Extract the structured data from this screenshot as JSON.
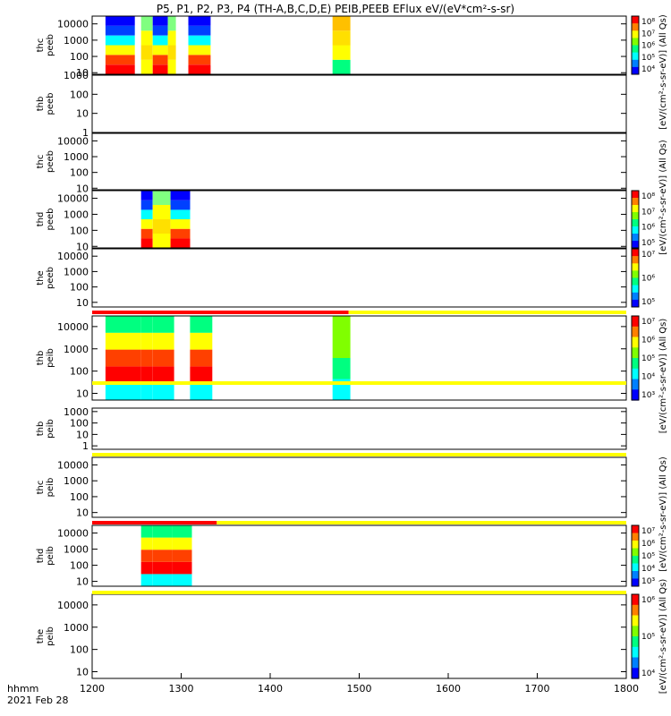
{
  "title": "P5, P1, P2, P3, P4 (TH-A,B,C,D,E) PEIB,PEEB EFlux eV/(eV*cm²-s-sr)",
  "footer": {
    "time_label": "hhmm",
    "date_label": "2021 Feb 28"
  },
  "colorbar_unit_labels": [
    "[eV/(cm²-s-sr-eV)] (All Qs)",
    "[eV/(cm²-s-sr-eV)] (All Qs)",
    "[eV/(cm²-s-sr-eV)] (All Qs)",
    "[eV/(cm²-s-sr-eV)] (All Qs)",
    "[eV/(cm²-s-sr-eV)] (All Qs)"
  ],
  "chart_data": {
    "type": "heatmap",
    "x_axis": {
      "range": [
        1200,
        1800
      ],
      "ticks": [
        "1200",
        "1300",
        "1400",
        "1500",
        "1600",
        "1700",
        "1800"
      ],
      "label": "hhmm"
    },
    "panels": [
      {
        "probe": "thc",
        "product": "peeb",
        "label": [
          "thc",
          "peeb"
        ],
        "ylog": true,
        "yrange": [
          8,
          30000
        ],
        "yticks": [
          "10",
          "100",
          "1000",
          "10000"
        ],
        "colorbar": "10⁴–10⁸",
        "cbar_ticks": [
          "10⁴",
          "10⁵",
          "10⁶",
          "10⁷",
          "10⁸"
        ],
        "data_intervals": [
          [
            1215,
            1248
          ],
          [
            1255,
            1268
          ],
          [
            1268,
            1285
          ],
          [
            1285,
            1294
          ],
          [
            1308,
            1333
          ],
          [
            1470,
            1490
          ]
        ]
      },
      {
        "probe": "thb",
        "product": "peeb",
        "label": [
          "thb",
          "peeb"
        ],
        "ylog": true,
        "yrange": [
          1,
          1000
        ],
        "yticks": [
          "1",
          "10",
          "100",
          "1000"
        ],
        "data_intervals": []
      },
      {
        "probe": "thc",
        "product": "peeb",
        "label": [
          "thc",
          "peeb"
        ],
        "ylog": true,
        "yrange": [
          8,
          30000
        ],
        "yticks": [
          "10",
          "100",
          "1000",
          "10000"
        ],
        "data_intervals": []
      },
      {
        "probe": "thd",
        "product": "peeb",
        "label": [
          "thd",
          "peeb"
        ],
        "ylog": true,
        "yrange": [
          8,
          30000
        ],
        "yticks": [
          "10",
          "100",
          "1000",
          "10000"
        ],
        "cbar_ticks": [
          "10⁵",
          "10⁶",
          "10⁷",
          "10⁸"
        ],
        "data_intervals": [
          [
            1255,
            1268
          ],
          [
            1268,
            1288
          ],
          [
            1288,
            1310
          ]
        ]
      },
      {
        "probe": "the",
        "product": "peeb",
        "label": [
          "the",
          "peeb"
        ],
        "ylog": true,
        "yrange": [
          5,
          30000
        ],
        "yticks": [
          "10",
          "100",
          "1000",
          "10000"
        ],
        "cbar_ticks": [
          "10⁵",
          "10⁶",
          "10⁷"
        ],
        "data_intervals": []
      },
      {
        "probe": "thb",
        "product": "peib",
        "label": [
          "thb",
          "peib"
        ],
        "ylog": true,
        "yrange": [
          5,
          30000
        ],
        "yticks": [
          "10",
          "100",
          "1000",
          "10000"
        ],
        "cbar_ticks": [
          "10³",
          "10⁴",
          "10⁵",
          "10⁶",
          "10⁷"
        ],
        "data_intervals": [
          [
            1215,
            1255
          ],
          [
            1255,
            1268
          ],
          [
            1268,
            1292
          ],
          [
            1310,
            1335
          ],
          [
            1470,
            1490
          ]
        ]
      },
      {
        "probe": "thb",
        "product": "peib",
        "label": [
          "thb",
          "peib"
        ],
        "ylog": true,
        "yrange": [
          0.5,
          2000
        ],
        "yticks": [
          "1",
          "10",
          "100",
          "1000"
        ],
        "data_intervals": []
      },
      {
        "probe": "thc",
        "product": "peib",
        "label": [
          "thc",
          "peib"
        ],
        "ylog": true,
        "yrange": [
          5,
          30000
        ],
        "yticks": [
          "10",
          "100",
          "1000",
          "10000"
        ],
        "data_intervals": []
      },
      {
        "probe": "thd",
        "product": "peib",
        "label": [
          "thd",
          "peib"
        ],
        "ylog": true,
        "yrange": [
          5,
          30000
        ],
        "yticks": [
          "10",
          "100",
          "1000",
          "10000"
        ],
        "cbar_ticks": [
          "10³",
          "10⁴",
          "10⁵",
          "10⁶",
          "10⁷"
        ],
        "data_intervals": [
          [
            1255,
            1268
          ],
          [
            1268,
            1290
          ],
          [
            1290,
            1312
          ]
        ]
      },
      {
        "probe": "the",
        "product": "peib",
        "label": [
          "the",
          "peib"
        ],
        "ylog": true,
        "yrange": [
          5,
          30000
        ],
        "yticks": [
          "10",
          "100",
          "1000",
          "10000"
        ],
        "cbar_ticks": [
          "10⁴",
          "10⁵",
          "10⁶"
        ],
        "data_intervals": []
      }
    ],
    "status_bars": [
      {
        "after_panel": 4,
        "segments": [
          {
            "from": 1200,
            "to": 1488,
            "color": "#ff0000"
          },
          {
            "from": 1488,
            "to": 1800,
            "color": "#ffff00"
          }
        ]
      },
      {
        "after_panel": 5,
        "segments": [
          {
            "from": 1200,
            "to": 1800,
            "color": "#ffff00"
          }
        ]
      },
      {
        "after_panel": 6,
        "segments": [
          {
            "from": 1200,
            "to": 1800,
            "color": "#ffff00"
          }
        ]
      },
      {
        "after_panel": 7,
        "segments": [
          {
            "from": 1200,
            "to": 1340,
            "color": "#ff0000"
          },
          {
            "from": 1340,
            "to": 1800,
            "color": "#ffff00"
          }
        ]
      },
      {
        "after_panel": 8,
        "segments": [
          {
            "from": 1200,
            "to": 1800,
            "color": "#ffff00"
          }
        ]
      }
    ],
    "colors": {
      "high": "#ff0000",
      "mid": "#ffff00",
      "low_mid": "#00ff80",
      "low": "#0000ff",
      "min": "#400080"
    }
  }
}
